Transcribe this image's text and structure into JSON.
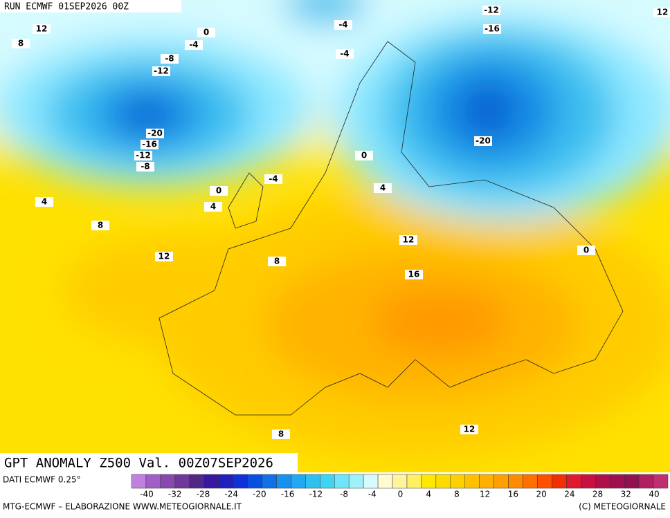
{
  "header": {
    "run": "RUN ECMWF 01SEP2026 00Z"
  },
  "map": {
    "contour_labels": [
      "12",
      "8",
      "0",
      "-4",
      "-8",
      "-12",
      "-20",
      "-16",
      "-12",
      "-8",
      "-4",
      "-4",
      "-12",
      "-16",
      "-20",
      "12",
      "0",
      "-4",
      "0",
      "4",
      "4",
      "4",
      "8",
      "12",
      "8",
      "12",
      "16",
      "0",
      "8",
      "12"
    ]
  },
  "footer": {
    "title": "GPT ANOMALY Z500 Val. 00Z07SEP2026",
    "data_source": "DATI ECMWF 0.25°",
    "credit": "MTG-ECMWF – ELABORAZIONE WWW.METEOGIORNALE.IT",
    "copyright": "(C) METEOGIORNALE"
  },
  "colorbar": {
    "labels": [
      "-40",
      "-32",
      "-28",
      "-24",
      "-20",
      "-16",
      "-12",
      "-8",
      "-4",
      "0",
      "4",
      "8",
      "12",
      "16",
      "20",
      "24",
      "28",
      "32",
      "40"
    ]
  }
}
